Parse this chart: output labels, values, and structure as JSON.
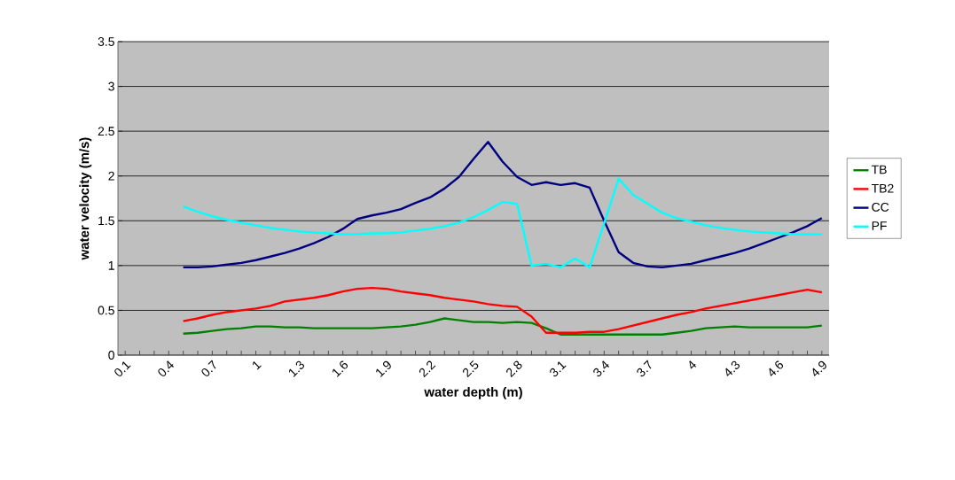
{
  "chart_data": {
    "type": "line",
    "xlabel": "water depth (m)",
    "ylabel": "water velocity (m/s)",
    "categories": [
      "0.1",
      null,
      null,
      "0.4",
      null,
      null,
      "0.7",
      null,
      null,
      "1",
      null,
      null,
      "1.3",
      null,
      null,
      "1.6",
      null,
      null,
      "1.9",
      null,
      null,
      "2.2",
      null,
      null,
      "2.5",
      null,
      null,
      "2.8",
      null,
      null,
      "3.1",
      null,
      null,
      "3.4",
      null,
      null,
      "3.7",
      null,
      null,
      "4",
      null,
      null,
      "4.3",
      null,
      null,
      "4.6",
      null,
      null,
      "4.9"
    ],
    "series": [
      {
        "name": "TB",
        "color": "#008000",
        "values": [
          null,
          null,
          null,
          null,
          0.24,
          0.25,
          0.27,
          0.29,
          0.3,
          0.32,
          0.32,
          0.31,
          0.31,
          0.3,
          0.3,
          0.3,
          0.3,
          0.3,
          0.31,
          0.32,
          0.34,
          0.37,
          0.41,
          0.39,
          0.37,
          0.37,
          0.36,
          0.37,
          0.36,
          0.3,
          0.23,
          0.23,
          0.23,
          0.23,
          0.23,
          0.23,
          0.23,
          0.23,
          0.25,
          0.27,
          0.3,
          0.31,
          0.32,
          0.31,
          0.31,
          0.31,
          0.31,
          0.31,
          0.33
        ]
      },
      {
        "name": "TB2",
        "color": "#ff0000",
        "values": [
          null,
          null,
          null,
          null,
          0.38,
          0.41,
          0.45,
          0.48,
          0.5,
          0.52,
          0.55,
          0.6,
          0.62,
          0.64,
          0.67,
          0.71,
          0.74,
          0.75,
          0.74,
          0.71,
          0.69,
          0.67,
          0.64,
          0.62,
          0.6,
          0.57,
          0.55,
          0.54,
          0.43,
          0.25,
          0.25,
          0.25,
          0.26,
          0.26,
          0.29,
          0.33,
          0.37,
          0.41,
          0.45,
          0.48,
          0.52,
          0.55,
          0.58,
          0.61,
          0.64,
          0.67,
          0.7,
          0.73,
          0.7
        ]
      },
      {
        "name": "CC",
        "color": "#000080",
        "values": [
          null,
          null,
          null,
          null,
          0.98,
          0.98,
          0.99,
          1.01,
          1.03,
          1.06,
          1.1,
          1.14,
          1.19,
          1.25,
          1.32,
          1.41,
          1.52,
          1.56,
          1.59,
          1.63,
          1.7,
          1.76,
          1.86,
          1.99,
          2.19,
          2.38,
          2.16,
          1.99,
          1.9,
          1.93,
          1.9,
          1.92,
          1.87,
          1.5,
          1.15,
          1.03,
          0.99,
          0.98,
          1.0,
          1.02,
          1.06,
          1.1,
          1.14,
          1.19,
          1.25,
          1.31,
          1.37,
          1.44,
          1.53
        ]
      },
      {
        "name": "PF",
        "color": "#00ffff",
        "values": [
          null,
          null,
          null,
          null,
          1.66,
          1.6,
          1.55,
          1.51,
          1.48,
          1.45,
          1.42,
          1.4,
          1.38,
          1.37,
          1.36,
          1.35,
          1.35,
          1.36,
          1.36,
          1.37,
          1.39,
          1.41,
          1.44,
          1.48,
          1.54,
          1.62,
          1.71,
          1.69,
          1.0,
          1.02,
          0.98,
          1.08,
          0.98,
          1.47,
          1.97,
          1.79,
          1.69,
          1.59,
          1.53,
          1.49,
          1.45,
          1.42,
          1.4,
          1.38,
          1.37,
          1.36,
          1.35,
          1.35,
          1.35
        ]
      }
    ],
    "ylim": [
      0,
      3.5
    ],
    "yticks": [
      0,
      0.5,
      1,
      1.5,
      2,
      2.5,
      3,
      3.5
    ],
    "grid": "y",
    "legend": "right"
  }
}
